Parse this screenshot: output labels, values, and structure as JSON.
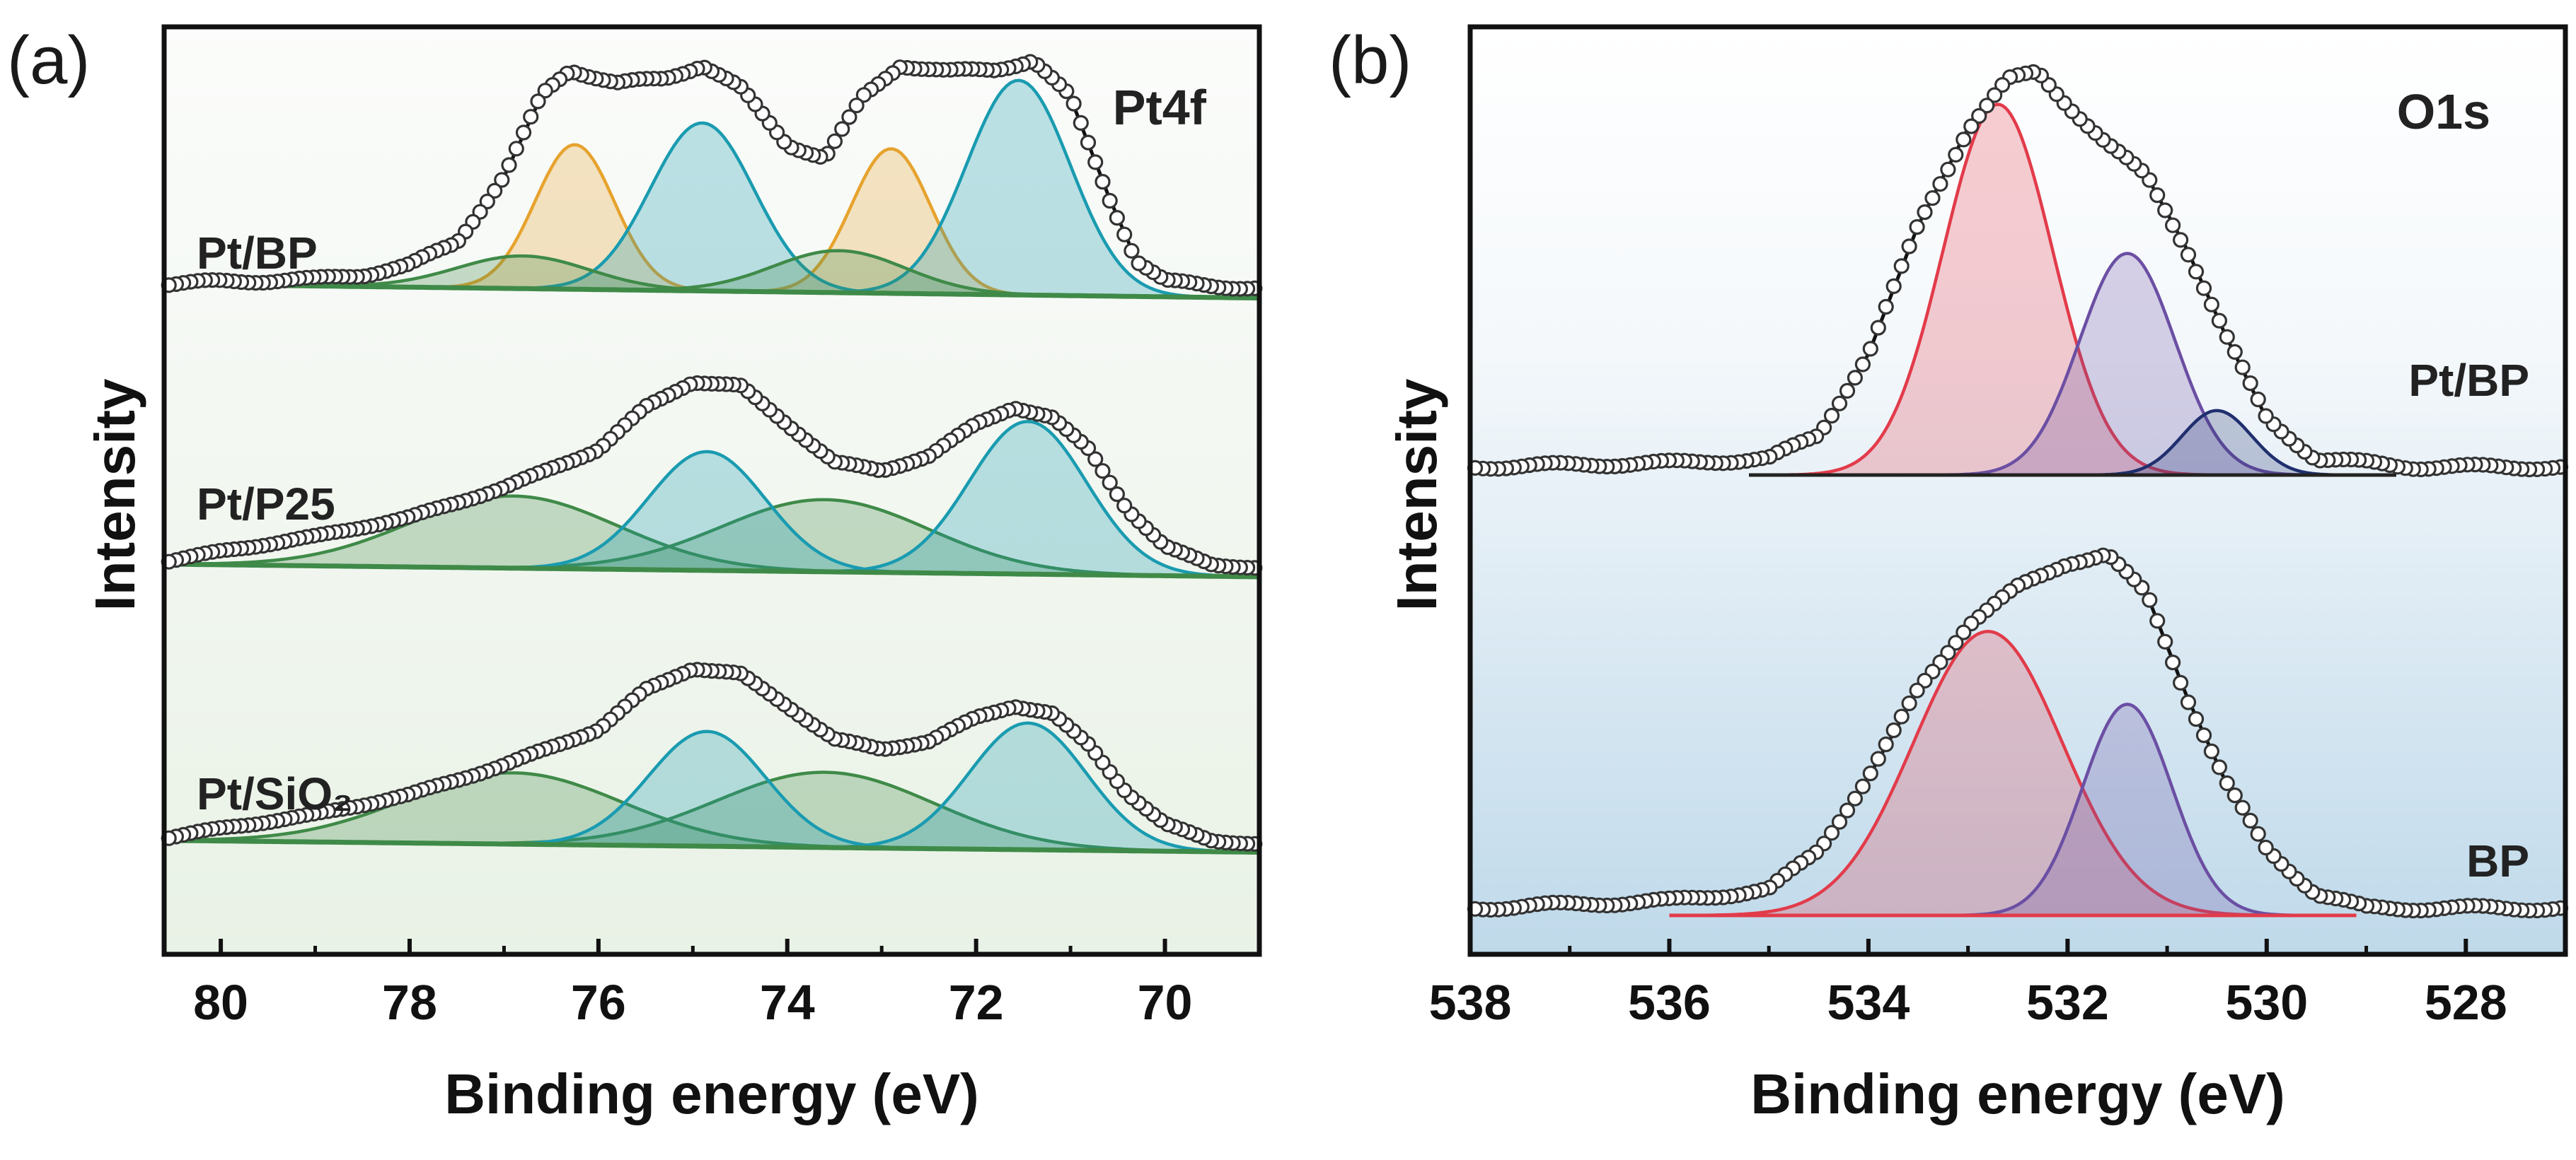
{
  "chart_data": [
    {
      "panel": "(a)",
      "type": "line",
      "title": "Pt4f",
      "xlabel": "Binding energy (eV)",
      "ylabel": "Intensity",
      "xlim": [
        80.6,
        69.0
      ],
      "xticks": [
        80,
        78,
        76,
        74,
        72,
        70
      ],
      "colors": {
        "pt0": "#1a9bb0",
        "ptox": "#e6a32e",
        "ptox2": "#3f8a48",
        "envelope": "#111111"
      },
      "series": [
        {
          "name": "Pt/BP",
          "points": [
            [
              80.6,
              0.04
            ],
            [
              80.0,
              0.05
            ],
            [
              79.0,
              0.06
            ],
            [
              78.5,
              0.08
            ],
            [
              78.0,
              0.12
            ],
            [
              77.5,
              0.22
            ],
            [
              77.0,
              0.5
            ],
            [
              76.6,
              0.85
            ],
            [
              76.3,
              0.96
            ],
            [
              75.8,
              0.9
            ],
            [
              75.3,
              0.92
            ],
            [
              74.9,
              0.98
            ],
            [
              74.5,
              0.88
            ],
            [
              74.0,
              0.64
            ],
            [
              73.6,
              0.58
            ],
            [
              73.2,
              0.84
            ],
            [
              72.8,
              0.98
            ],
            [
              72.3,
              0.95
            ],
            [
              71.8,
              0.96
            ],
            [
              71.4,
              1.0
            ],
            [
              71.0,
              0.84
            ],
            [
              70.6,
              0.42
            ],
            [
              70.3,
              0.14
            ],
            [
              70.0,
              0.05
            ],
            [
              69.0,
              0.02
            ]
          ]
        },
        {
          "name": "Pt/P25",
          "points": [
            [
              80.6,
              0.05
            ],
            [
              80.0,
              0.1
            ],
            [
              79.0,
              0.17
            ],
            [
              78.0,
              0.26
            ],
            [
              77.0,
              0.4
            ],
            [
              76.0,
              0.58
            ],
            [
              75.5,
              0.78
            ],
            [
              75.0,
              0.9
            ],
            [
              74.5,
              0.88
            ],
            [
              74.0,
              0.7
            ],
            [
              73.5,
              0.52
            ],
            [
              73.0,
              0.48
            ],
            [
              72.5,
              0.55
            ],
            [
              72.0,
              0.7
            ],
            [
              71.6,
              0.78
            ],
            [
              71.2,
              0.73
            ],
            [
              70.8,
              0.58
            ],
            [
              70.4,
              0.3
            ],
            [
              70.0,
              0.12
            ],
            [
              69.5,
              0.04
            ],
            [
              69.0,
              0.02
            ]
          ]
        },
        {
          "name": "Pt/SiO₂",
          "points": [
            [
              80.6,
              0.05
            ],
            [
              80.0,
              0.1
            ],
            [
              79.0,
              0.17
            ],
            [
              78.0,
              0.27
            ],
            [
              77.0,
              0.42
            ],
            [
              76.0,
              0.6
            ],
            [
              75.5,
              0.8
            ],
            [
              75.0,
              0.91
            ],
            [
              74.5,
              0.88
            ],
            [
              74.0,
              0.72
            ],
            [
              73.5,
              0.55
            ],
            [
              73.0,
              0.5
            ],
            [
              72.5,
              0.54
            ],
            [
              72.0,
              0.66
            ],
            [
              71.6,
              0.72
            ],
            [
              71.2,
              0.68
            ],
            [
              70.8,
              0.52
            ],
            [
              70.4,
              0.28
            ],
            [
              70.0,
              0.12
            ],
            [
              69.5,
              0.04
            ],
            [
              69.0,
              0.02
            ]
          ]
        }
      ]
    },
    {
      "panel": "(b)",
      "type": "line",
      "title": "O1s",
      "xlabel": "Binding energy (eV)",
      "ylabel": "Intensity",
      "xlim": [
        538,
        527
      ],
      "xticks": [
        538,
        536,
        534,
        532,
        530,
        528
      ],
      "colors": {
        "oxide": "#e23b4a",
        "hydroxyl": "#6b4fa3",
        "lattice": "#1f2f6e",
        "envelope": "#111111"
      },
      "series": [
        {
          "name": "Pt/BP",
          "points": [
            [
              538.0,
              0.02
            ],
            [
              536.0,
              0.03
            ],
            [
              535.0,
              0.04
            ],
            [
              534.5,
              0.1
            ],
            [
              534.0,
              0.3
            ],
            [
              533.5,
              0.62
            ],
            [
              533.0,
              0.86
            ],
            [
              532.6,
              0.98
            ],
            [
              532.3,
              1.0
            ],
            [
              532.0,
              0.92
            ],
            [
              531.6,
              0.82
            ],
            [
              531.2,
              0.74
            ],
            [
              530.8,
              0.56
            ],
            [
              530.4,
              0.34
            ],
            [
              530.0,
              0.14
            ],
            [
              529.5,
              0.04
            ],
            [
              528.5,
              0.02
            ],
            [
              527.0,
              0.02
            ]
          ]
        },
        {
          "name": "BP",
          "points": [
            [
              538.0,
              0.02
            ],
            [
              536.0,
              0.04
            ],
            [
              535.0,
              0.07
            ],
            [
              534.5,
              0.18
            ],
            [
              534.0,
              0.38
            ],
            [
              533.5,
              0.62
            ],
            [
              533.0,
              0.8
            ],
            [
              532.5,
              0.9
            ],
            [
              532.0,
              0.97
            ],
            [
              531.6,
              0.99
            ],
            [
              531.2,
              0.88
            ],
            [
              530.8,
              0.6
            ],
            [
              530.4,
              0.36
            ],
            [
              530.0,
              0.18
            ],
            [
              529.5,
              0.06
            ],
            [
              529.0,
              0.02
            ],
            [
              527.0,
              0.02
            ]
          ]
        }
      ]
    }
  ]
}
